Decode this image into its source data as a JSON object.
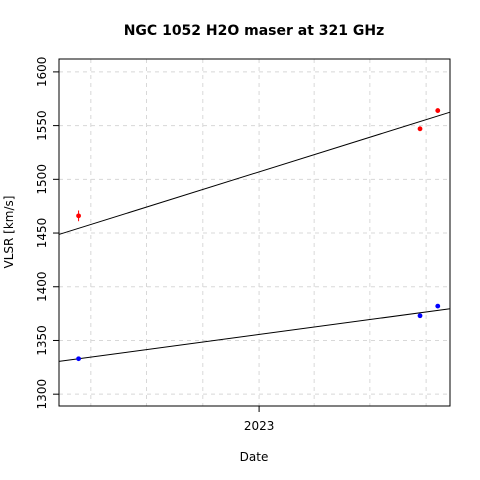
{
  "chart_data": {
    "type": "scatter",
    "title": "NGC 1052 H2O maser at 321 GHz",
    "xlabel": "Date",
    "ylabel": "VLSR [km/s]",
    "xlim": [
      "2022-02-08",
      "2023-11-09"
    ],
    "ylim": [
      1289,
      1612
    ],
    "x_ticks": [
      {
        "date": "2023-01-01",
        "label": "2023"
      }
    ],
    "y_ticks": [
      1300,
      1350,
      1400,
      1450,
      1500,
      1550,
      1600
    ],
    "grid": true,
    "series": [
      {
        "color": "#ff0000",
        "points": [
          {
            "x": "2022-03-12",
            "y": 1466,
            "err": 5
          },
          {
            "x": "2023-09-21",
            "y": 1547,
            "err": 2
          },
          {
            "x": "2023-10-20",
            "y": 1564,
            "err": 2
          }
        ],
        "fit_line": {
          "x": [
            "2022-02-08",
            "2023-11-09"
          ],
          "y": [
            1448.7,
            1562.5
          ]
        }
      },
      {
        "color": "#0000ff",
        "points": [
          {
            "x": "2022-03-12",
            "y": 1333,
            "err": 1
          },
          {
            "x": "2023-09-21",
            "y": 1373,
            "err": 1
          },
          {
            "x": "2023-10-20",
            "y": 1382,
            "err": 1
          }
        ],
        "fit_line": {
          "x": [
            "2022-02-08",
            "2023-11-09"
          ],
          "y": [
            1330.5,
            1379.5
          ]
        }
      }
    ]
  }
}
